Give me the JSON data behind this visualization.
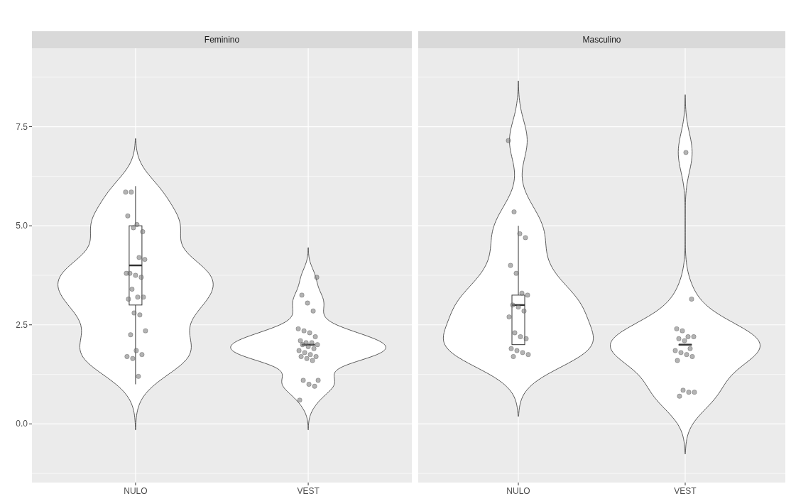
{
  "chart_data": [
    {
      "type": "box",
      "title": "Feminino",
      "categories": [
        "NULO",
        "VEST"
      ],
      "ylim": [
        -1.48,
        9.48
      ],
      "yticks": [
        {
          "value": 0,
          "label": "0.0"
        },
        {
          "value": 2.5,
          "label": "2.5"
        },
        {
          "value": 5,
          "label": "5.0"
        },
        {
          "value": 7.5,
          "label": "7.5"
        }
      ],
      "grid": true,
      "boxes": [
        {
          "low": 1.0,
          "q1": 3.0,
          "median": 4.0,
          "q3": 5.0,
          "high": 6.0
        },
        {
          "low": 2.0,
          "q1": 2.0,
          "median": 2.0,
          "q3": 2.0,
          "high": 2.0
        }
      ],
      "series": [
        {
          "type": "scatter",
          "color": "#808080",
          "x": [
            "NULO",
            "NULO",
            "NULO",
            "NULO",
            "NULO",
            "NULO",
            "NULO",
            "NULO",
            "NULO",
            "NULO",
            "NULO",
            "NULO",
            "NULO",
            "NULO",
            "NULO",
            "NULO",
            "NULO",
            "NULO",
            "NULO",
            "NULO",
            "NULO",
            "NULO",
            "NULO",
            "NULO",
            "NULO",
            "VEST",
            "VEST",
            "VEST",
            "VEST",
            "VEST",
            "VEST",
            "VEST",
            "VEST",
            "VEST",
            "VEST",
            "VEST",
            "VEST",
            "VEST",
            "VEST",
            "VEST",
            "VEST",
            "VEST",
            "VEST",
            "VEST",
            "VEST",
            "VEST",
            "VEST",
            "VEST",
            "VEST",
            "VEST",
            "VEST",
            "VEST"
          ],
          "values": [
            5.85,
            5.85,
            5.03,
            4.85,
            5.25,
            4.95,
            4.2,
            4.15,
            3.8,
            3.75,
            3.7,
            3.8,
            3.4,
            3.2,
            3.2,
            3.15,
            2.8,
            2.75,
            2.35,
            2.25,
            1.85,
            1.75,
            1.7,
            1.65,
            1.2,
            3.7,
            3.25,
            3.05,
            2.85,
            2.4,
            2.35,
            2.3,
            2.2,
            2.1,
            2.05,
            2.05,
            2.0,
            2.0,
            1.95,
            1.9,
            1.85,
            1.8,
            1.75,
            1.7,
            1.7,
            1.65,
            1.6,
            1.1,
            1.1,
            1.0,
            0.95,
            0.6
          ]
        }
      ]
    },
    {
      "type": "box",
      "title": "Masculino",
      "categories": [
        "NULO",
        "VEST"
      ],
      "ylim": [
        -1.48,
        9.48
      ],
      "yticks": [
        0,
        2.5,
        5,
        7.5
      ],
      "grid": true,
      "tick_labels": "x",
      "boxes": [
        {
          "low": 2.0,
          "q1": 2.0,
          "median": 3.0,
          "q3": 3.25,
          "high": 5.0
        },
        {
          "low": 2.0,
          "q1": 2.0,
          "median": 2.0,
          "q3": 2.0,
          "high": 2.0
        }
      ],
      "series": [
        {
          "type": "scatter",
          "color": "#808080",
          "x": [
            "NULO",
            "NULO",
            "NULO",
            "NULO",
            "NULO",
            "NULO",
            "NULO",
            "NULO",
            "NULO",
            "NULO",
            "NULO",
            "NULO",
            "NULO",
            "NULO",
            "NULO",
            "NULO",
            "NULO",
            "NULO",
            "NULO",
            "NULO",
            "VEST",
            "VEST",
            "VEST",
            "VEST",
            "VEST",
            "VEST",
            "VEST",
            "VEST",
            "VEST",
            "VEST",
            "VEST",
            "VEST",
            "VEST",
            "VEST",
            "VEST",
            "VEST",
            "VEST",
            "VEST"
          ],
          "values": [
            7.15,
            5.35,
            4.8,
            4.7,
            4.0,
            3.8,
            3.3,
            3.25,
            3.0,
            2.95,
            2.85,
            2.7,
            2.3,
            2.2,
            2.15,
            1.9,
            1.85,
            1.8,
            1.75,
            1.7,
            6.85,
            3.15,
            2.4,
            2.35,
            2.2,
            2.2,
            2.15,
            2.1,
            1.9,
            1.85,
            1.8,
            1.75,
            1.7,
            1.6,
            0.85,
            0.8,
            0.8,
            0.7
          ]
        }
      ]
    }
  ]
}
